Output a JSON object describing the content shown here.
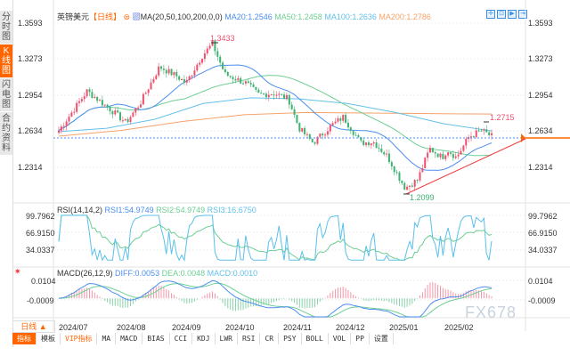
{
  "sidebar": {
    "items": [
      {
        "label": "分时图"
      },
      {
        "label": "K线图",
        "active": true
      },
      {
        "label": "闪电图"
      },
      {
        "label": "合约资料"
      }
    ]
  },
  "header": {
    "symbol": "英镑美元",
    "period": "【日线】",
    "ma_title": "MA(20,50,100,200,0,0)",
    "ma20": "MA20:1.2546",
    "ma50": "MA50:1.2458",
    "ma100": "MA100:1.2636",
    "ma200": "MA200:1.2786"
  },
  "toolbar_icons": [
    "crosshair-icon",
    "zoom-box-icon",
    "play-icon",
    "jump-end-icon"
  ],
  "price_axis": {
    "ticks": [
      "1.3593",
      "1.3273",
      "1.2954",
      "1.2634",
      "1.2314"
    ]
  },
  "annotations": {
    "high": "1.3433",
    "recent_high": "1.2715",
    "low": "1.2099"
  },
  "rsi": {
    "title": "RSI(14,14,2)",
    "rsi1": "RSI1:54.9749",
    "rsi2": "RSI2:54.9749",
    "rsi3": "RSI3:16.6750",
    "ticks": [
      "99.7962",
      "66.9150",
      "34.0337"
    ]
  },
  "macd": {
    "title": "MACD(26,12,9)",
    "diff": "DIFF:0.0053",
    "dea": "DEA:0.0048",
    "macd": "MACD:0.0010",
    "ticks": [
      "0.0104",
      "-0.0009"
    ]
  },
  "time_axis": {
    "period_button": "日线 ▲",
    "labels": [
      "2024/07",
      "2024/08",
      "2024/09",
      "2024/10",
      "2024/11",
      "2024/12",
      "2025/01",
      "2025/02"
    ]
  },
  "bottom_tabs": [
    "指标",
    "模板",
    "VIP指标",
    "MA",
    "MACD",
    "BIAS",
    "CCI",
    "KDJ",
    "LWR",
    "RSI",
    "CR",
    "PSY",
    "BOLL",
    "VOL",
    "PP",
    "设置"
  ],
  "watermark": "FX678",
  "colors": {
    "up": "#f0506e",
    "down": "#3cb371",
    "ma20": "#4d8ff0",
    "ma50": "#6dcf94",
    "ma100": "#64c0e8",
    "ma200": "#f5a26a",
    "trendline": "#f03c3c",
    "accent": "#ff6600"
  },
  "chart_data": {
    "type": "candlestick",
    "price_range": [
      1.2,
      1.365
    ],
    "close_keypoints": [
      {
        "date": "2024-07-01",
        "close": 1.264
      },
      {
        "date": "2024-07-17",
        "close": 1.299
      },
      {
        "date": "2024-07-30",
        "close": 1.283
      },
      {
        "date": "2024-08-08",
        "close": 1.271
      },
      {
        "date": "2024-08-16",
        "close": 1.288
      },
      {
        "date": "2024-08-27",
        "close": 1.3206
      },
      {
        "date": "2024-09-06",
        "close": 1.312
      },
      {
        "date": "2024-09-11",
        "close": 1.306
      },
      {
        "date": "2024-09-20",
        "close": 1.33
      },
      {
        "date": "2024-09-26",
        "close": 1.341
      },
      {
        "date": "2024-10-03",
        "close": 1.314
      },
      {
        "date": "2024-10-15",
        "close": 1.306
      },
      {
        "date": "2024-10-22",
        "close": 1.296
      },
      {
        "date": "2024-10-31",
        "close": 1.297
      },
      {
        "date": "2024-11-08",
        "close": 1.292
      },
      {
        "date": "2024-11-14",
        "close": 1.266
      },
      {
        "date": "2024-11-22",
        "close": 1.253
      },
      {
        "date": "2024-12-02",
        "close": 1.268
      },
      {
        "date": "2024-12-09",
        "close": 1.276
      },
      {
        "date": "2024-12-19",
        "close": 1.253
      },
      {
        "date": "2024-12-26",
        "close": 1.254
      },
      {
        "date": "2025-01-03",
        "close": 1.241
      },
      {
        "date": "2025-01-13",
        "close": 1.213
      },
      {
        "date": "2025-01-20",
        "close": 1.22
      },
      {
        "date": "2025-01-27",
        "close": 1.248
      },
      {
        "date": "2025-02-03",
        "close": 1.24
      },
      {
        "date": "2025-02-06",
        "close": 1.247
      },
      {
        "date": "2025-02-11",
        "close": 1.24
      },
      {
        "date": "2025-02-18",
        "close": 1.258
      },
      {
        "date": "2025-02-25",
        "close": 1.264
      },
      {
        "date": "2025-03-03",
        "close": 1.2588
      }
    ],
    "high": 1.3433,
    "low": 1.2099,
    "recent_high": 1.2715,
    "last": 1.2588,
    "ma100_keypoints": [
      1.263,
      1.266,
      1.274,
      1.288,
      1.293,
      1.292,
      1.288,
      1.28,
      1.27,
      1.2636
    ],
    "ma200_keypoints": [
      1.259,
      1.264,
      1.272,
      1.278,
      1.28,
      1.2795,
      1.279,
      1.2786
    ]
  }
}
